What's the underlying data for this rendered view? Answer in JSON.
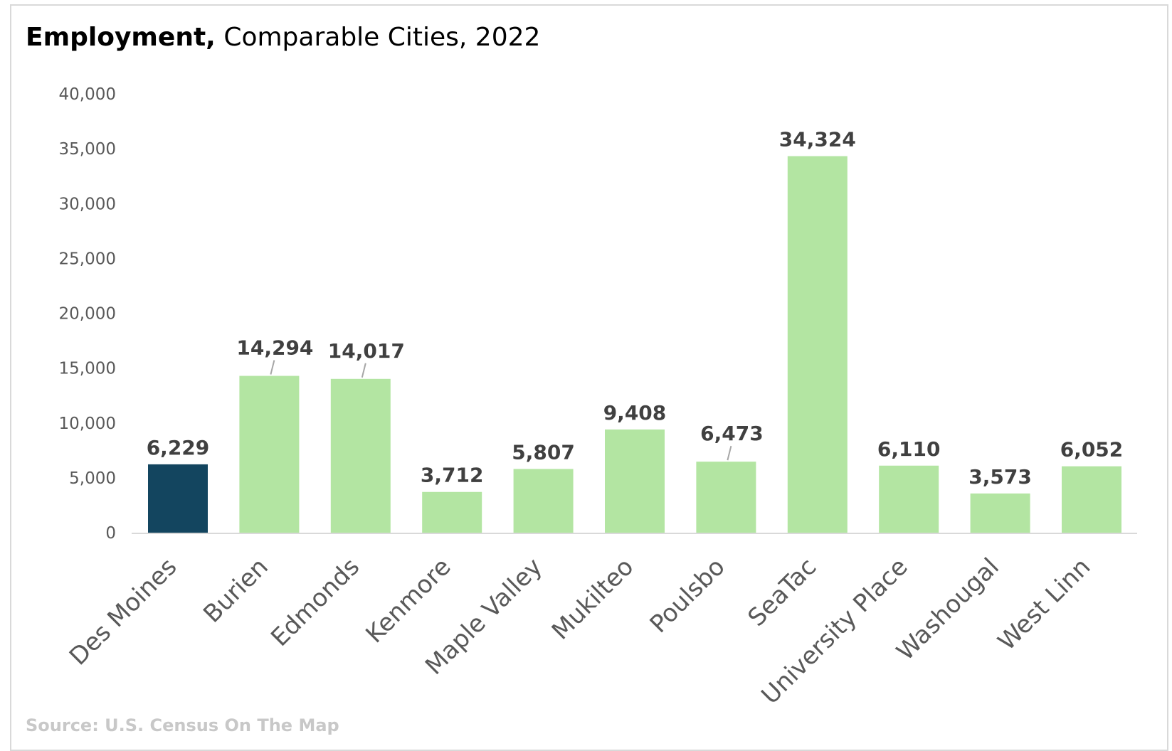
{
  "title": {
    "bold": "Employment,",
    "rest": "Comparable Cities, 2022"
  },
  "source": "Source: U.S. Census On The Map",
  "colors": {
    "highlight": "#13455f",
    "bar": "#b3e5a2",
    "axis_text": "#595959",
    "label_text": "#404040",
    "axis_line": "#d9d9d9",
    "leader_line": "#a6a6a6"
  },
  "chart_data": {
    "type": "bar",
    "categories": [
      "Des Moines",
      "Burien",
      "Edmonds",
      "Kenmore",
      "Maple Valley",
      "Mukilteo",
      "Poulsbo",
      "SeaTac",
      "University Place",
      "Washougal",
      "West Linn"
    ],
    "values": [
      6229,
      14294,
      14017,
      3712,
      5807,
      9408,
      6473,
      34324,
      6110,
      3573,
      6052
    ],
    "value_labels": [
      "6,229",
      "14,294",
      "14,017",
      "3,712",
      "5,807",
      "9,408",
      "6,473",
      "34,324",
      "6,110",
      "3,573",
      "6,052"
    ],
    "highlight_category": "Des Moines",
    "ylim": [
      0,
      40000
    ],
    "yticks": [
      0,
      5000,
      10000,
      15000,
      20000,
      25000,
      30000,
      35000,
      40000
    ],
    "ytick_labels": [
      "0",
      "5,000",
      "10,000",
      "15,000",
      "20,000",
      "25,000",
      "30,000",
      "35,000",
      "40,000"
    ],
    "grid": false,
    "legend": "none",
    "xlabel": "",
    "ylabel": ""
  }
}
